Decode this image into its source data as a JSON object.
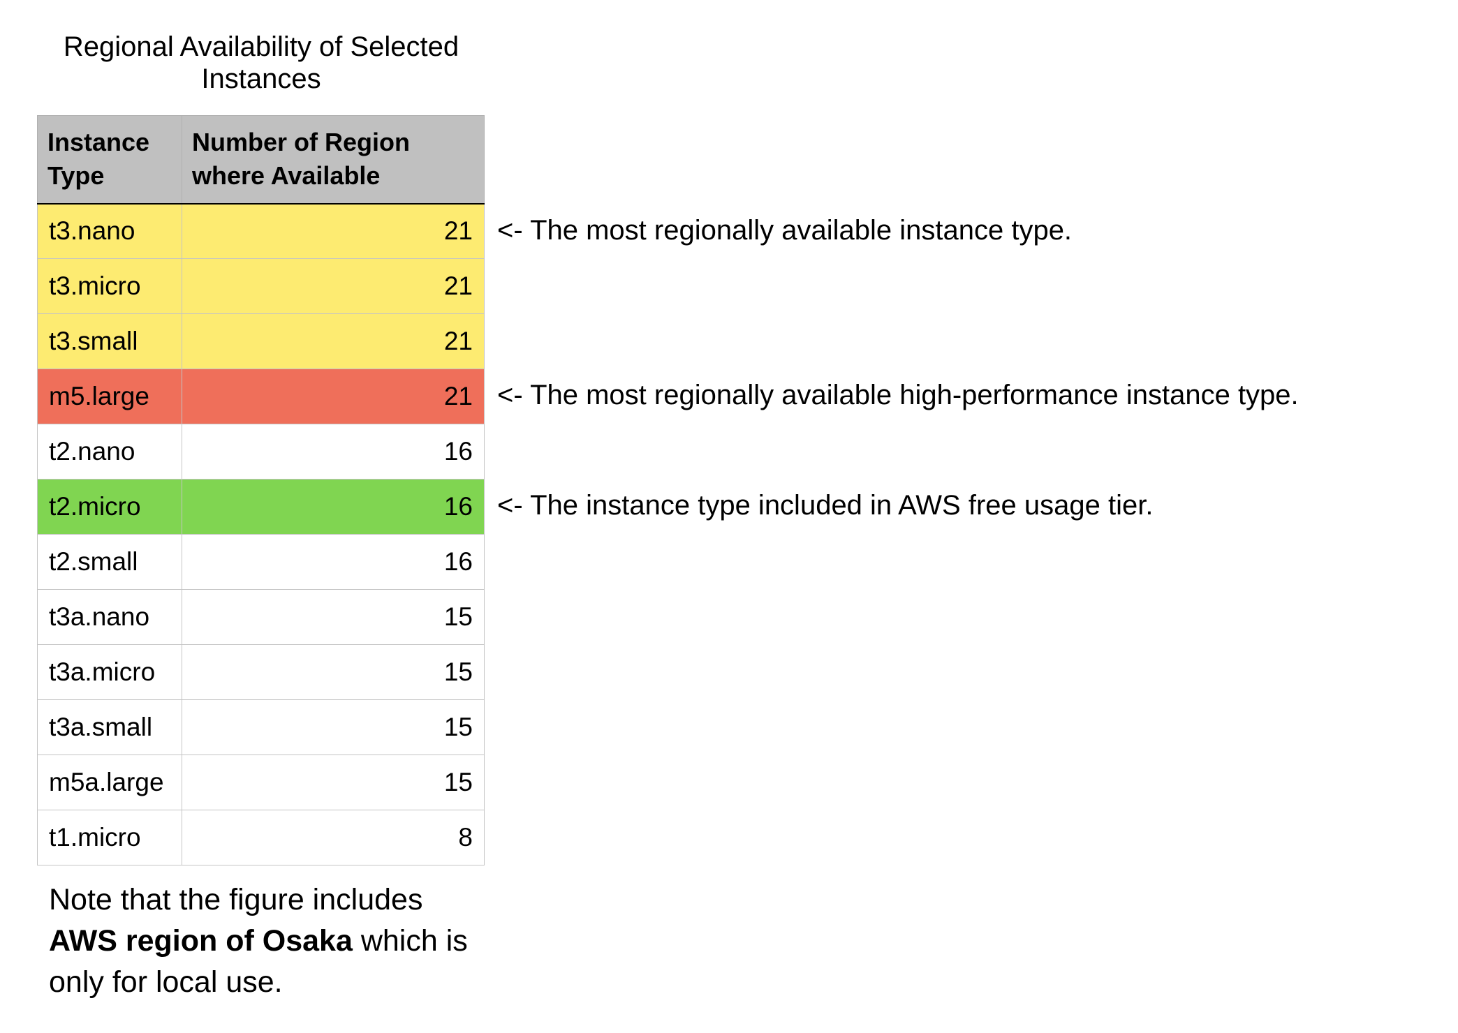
{
  "title": "Regional Availability of Selected Instances",
  "table": {
    "headers": [
      "Instance Type",
      "Number of Region where Available"
    ],
    "rows": [
      {
        "type": "t3.nano",
        "regions": "21",
        "highlight": "yellow"
      },
      {
        "type": "t3.micro",
        "regions": "21",
        "highlight": "yellow"
      },
      {
        "type": "t3.small",
        "regions": "21",
        "highlight": "yellow"
      },
      {
        "type": "m5.large",
        "regions": "21",
        "highlight": "red"
      },
      {
        "type": "t2.nano",
        "regions": "16",
        "highlight": "none"
      },
      {
        "type": "t2.micro",
        "regions": "16",
        "highlight": "green"
      },
      {
        "type": "t2.small",
        "regions": "16",
        "highlight": "none"
      },
      {
        "type": "t3a.nano",
        "regions": "15",
        "highlight": "none"
      },
      {
        "type": "t3a.micro",
        "regions": "15",
        "highlight": "none"
      },
      {
        "type": "t3a.small",
        "regions": "15",
        "highlight": "none"
      },
      {
        "type": "m5a.large",
        "regions": "15",
        "highlight": "none"
      },
      {
        "type": "t1.micro",
        "regions": "8",
        "highlight": "none"
      }
    ]
  },
  "annotations": [
    "<- The most regionally available instance type.",
    "<- The most regionally available high-performance instance type.",
    "<- The instance type included in AWS free usage tier."
  ],
  "note": {
    "before": "Note that the figure includes ",
    "bold": "AWS region of Osaka",
    "after": " which is only for local use."
  },
  "colors": {
    "header_bg": "#c0c0c0",
    "yellow": "#fdeb71",
    "red": "#ef6f5a",
    "green": "#80d551"
  }
}
